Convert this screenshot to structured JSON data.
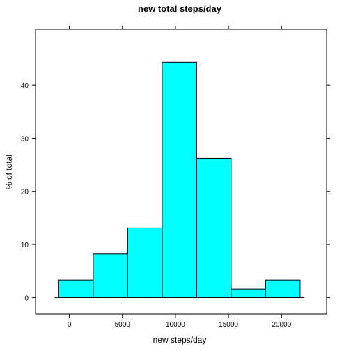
{
  "chart_data": {
    "type": "bar",
    "title": "new total steps/day",
    "xlabel": "new steps/day",
    "ylabel": "% of total",
    "bin_edges": [
      -1000,
      2250,
      5500,
      8750,
      12000,
      15250,
      18500,
      21750
    ],
    "values": [
      3.3,
      8.2,
      13.1,
      44.3,
      26.2,
      1.6,
      3.3
    ],
    "xlim": [
      -3190,
      24250
    ],
    "ylim": [
      -3.1,
      50.5
    ],
    "xticks": [
      0,
      5000,
      10000,
      15000,
      20000
    ],
    "xtick_labels": [
      "0",
      "5000",
      "10000",
      "15000",
      "20000"
    ],
    "yticks": [
      0,
      10,
      20,
      30,
      40
    ],
    "ytick_labels": [
      "0",
      "10",
      "20",
      "30",
      "40"
    ],
    "grid": false,
    "bar_color": "#00FFFF",
    "baseline": 0
  }
}
